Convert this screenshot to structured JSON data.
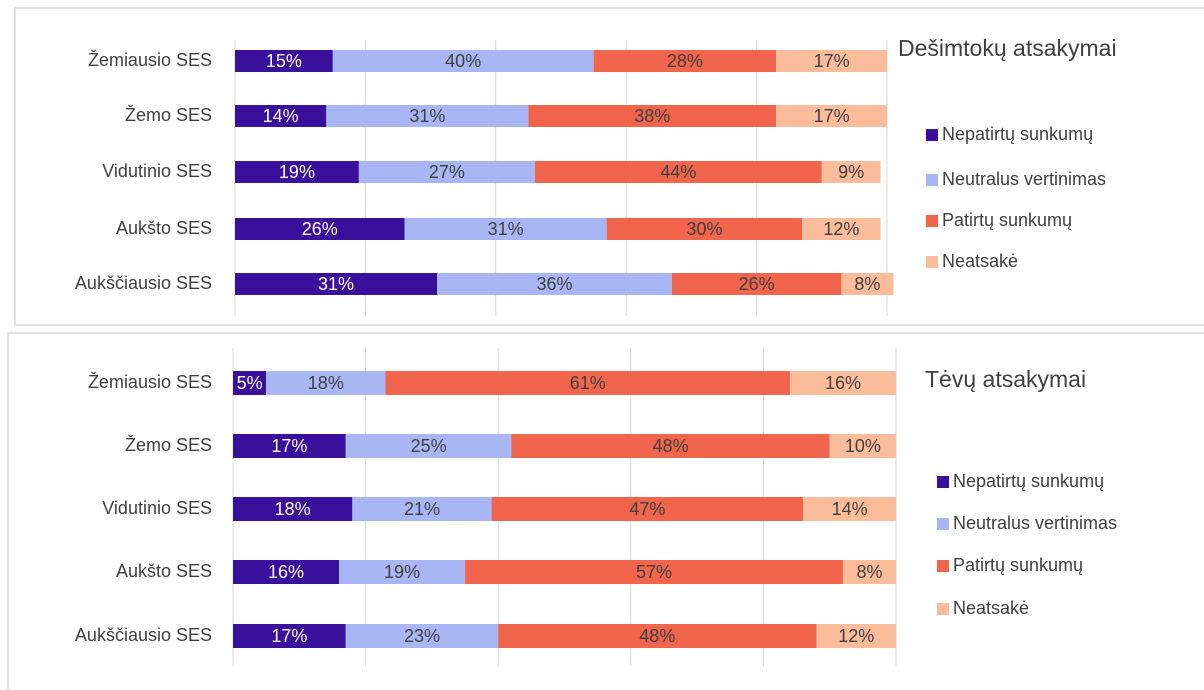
{
  "chart_data": [
    {
      "type": "stacked_bar_h",
      "title": "Dešimtokų atsakymai",
      "categories": [
        "Žemiausio SES",
        "Žemo SES",
        "Vidutinio SES",
        "Aukšto SES",
        "Aukščiausio SES"
      ],
      "series": [
        {
          "name": "Nepatirtų sunkumų",
          "color": "#3a0f9c",
          "values": [
            15,
            14,
            19,
            26,
            31
          ],
          "value_labels": [
            "15%",
            "14%",
            "19%",
            "26%",
            "31%"
          ]
        },
        {
          "name": "Neutralus vertinimas",
          "color": "#a8b7f4",
          "values": [
            40,
            31,
            27,
            31,
            36
          ],
          "value_labels": [
            "40%",
            "31%",
            "27%",
            "31%",
            "36%"
          ]
        },
        {
          "name": "Patirtų sunkumų",
          "color": "#f0654b",
          "values": [
            28,
            38,
            44,
            30,
            26
          ],
          "value_labels": [
            "28%",
            "38%",
            "44%",
            "30%",
            "26%"
          ]
        },
        {
          "name": "Neatsakė",
          "color": "#fbbc9b",
          "values": [
            17,
            17,
            9,
            12,
            8
          ],
          "value_labels": [
            "17%",
            "17%",
            "9%",
            "12%",
            "8%"
          ]
        }
      ],
      "xlim": [
        0,
        100
      ],
      "xticks": [
        0,
        20,
        40,
        60,
        80,
        100
      ],
      "grid": true
    },
    {
      "type": "stacked_bar_h",
      "title": "Tėvų atsakymai",
      "categories": [
        "Žemiausio SES",
        "Žemo SES",
        "Vidutinio SES",
        "Aukšto SES",
        "Aukščiausio SES"
      ],
      "series": [
        {
          "name": "Nepatirtų sunkumų",
          "color": "#3a0f9c",
          "values": [
            5,
            17,
            18,
            16,
            17
          ],
          "value_labels": [
            "5%",
            "17%",
            "18%",
            "16%",
            "17%"
          ]
        },
        {
          "name": "Neutralus vertinimas",
          "color": "#a8b7f4",
          "values": [
            18,
            25,
            21,
            19,
            23
          ],
          "value_labels": [
            "18%",
            "25%",
            "21%",
            "19%",
            "23%"
          ]
        },
        {
          "name": "Patirtų sunkumų",
          "color": "#f0654b",
          "values": [
            61,
            48,
            47,
            57,
            48
          ],
          "value_labels": [
            "61%",
            "48%",
            "47%",
            "57%",
            "48%"
          ]
        },
        {
          "name": "Neatsakė",
          "color": "#fbbc9b",
          "values": [
            16,
            10,
            14,
            8,
            12
          ],
          "value_labels": [
            "16%",
            "10%",
            "14%",
            "8%",
            "12%"
          ]
        }
      ],
      "xlim": [
        0,
        100
      ],
      "xticks": [
        0,
        20,
        40,
        60,
        80,
        100
      ],
      "grid": true
    }
  ]
}
